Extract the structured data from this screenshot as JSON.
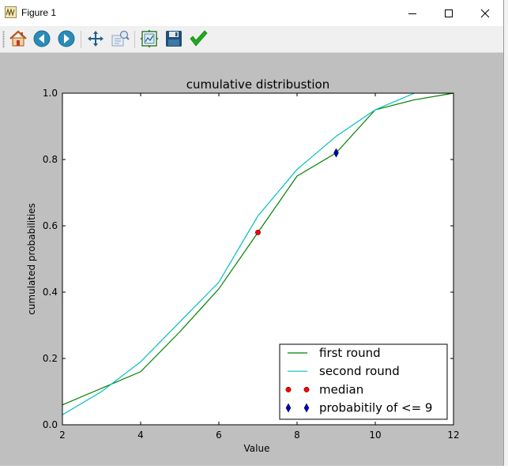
{
  "window": {
    "title": "Figure 1",
    "controls": [
      "minimize",
      "maximize",
      "close"
    ]
  },
  "toolbar": {
    "buttons": [
      {
        "name": "home",
        "icon": "home-icon"
      },
      {
        "name": "back",
        "icon": "back-arrow-icon"
      },
      {
        "name": "forward",
        "icon": "forward-arrow-icon"
      },
      {
        "name": "pan",
        "icon": "pan-icon"
      },
      {
        "name": "zoom",
        "icon": "zoom-rect-icon"
      },
      {
        "name": "subplots",
        "icon": "subplots-icon"
      },
      {
        "name": "save",
        "icon": "save-icon"
      },
      {
        "name": "edit",
        "icon": "checkmark-icon"
      }
    ]
  },
  "chart_data": {
    "type": "line",
    "title": "cumulative distribustion",
    "xlabel": "Value",
    "ylabel": "cumulated probabilities",
    "xlim": [
      2,
      12
    ],
    "ylim": [
      0.0,
      1.0
    ],
    "xticks": [
      "2",
      "4",
      "6",
      "8",
      "10",
      "12"
    ],
    "yticks": [
      "0.0",
      "0.2",
      "0.4",
      "0.6",
      "0.8",
      "1.0"
    ],
    "grid": false,
    "legend_position": "lower right",
    "series": [
      {
        "name": "first round",
        "kind": "line",
        "color": "#008000",
        "x": [
          2,
          3,
          4,
          5,
          6,
          7,
          8,
          9,
          10,
          11,
          12
        ],
        "y": [
          0.06,
          0.11,
          0.16,
          0.28,
          0.41,
          0.58,
          0.75,
          0.82,
          0.95,
          0.98,
          1.0
        ]
      },
      {
        "name": "second round",
        "kind": "line",
        "color": "#00bfbf",
        "x": [
          2,
          3,
          4,
          5,
          6,
          7,
          8,
          9,
          10,
          11
        ],
        "y": [
          0.03,
          0.1,
          0.19,
          0.31,
          0.43,
          0.63,
          0.77,
          0.87,
          0.95,
          1.0
        ]
      },
      {
        "name": "median",
        "kind": "marker",
        "marker": "circle",
        "color": "#ff0000",
        "x": [
          7
        ],
        "y": [
          0.58
        ]
      },
      {
        "name": "probabitily of <= 9",
        "kind": "marker",
        "marker": "diamond",
        "color": "#0000bf",
        "x": [
          9
        ],
        "y": [
          0.82
        ]
      }
    ]
  }
}
